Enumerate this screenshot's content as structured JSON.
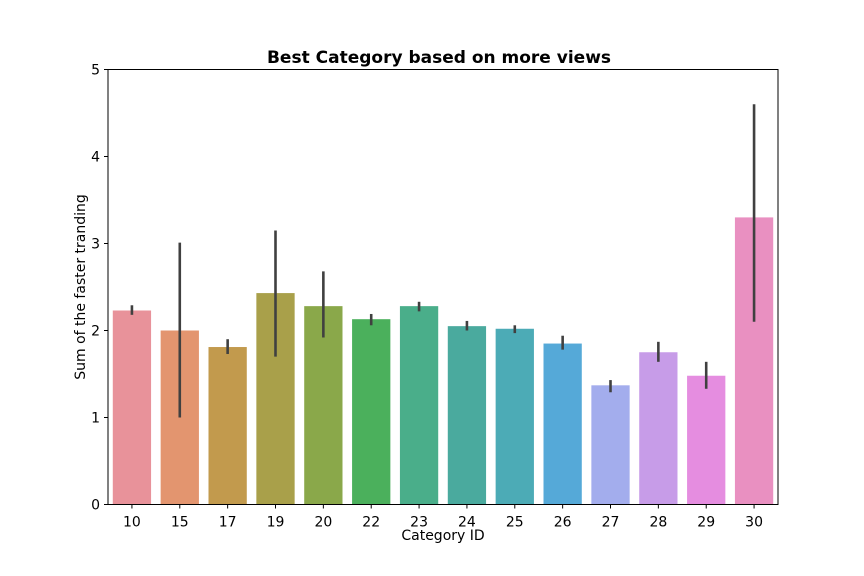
{
  "chart_data": {
    "type": "bar",
    "title": "Best Category based on more views",
    "xlabel": "Category ID",
    "ylabel": "Sum of the faster tranding",
    "ylim": [
      0,
      5
    ],
    "yticks": [
      "0",
      "1",
      "2",
      "3",
      "4",
      "5"
    ],
    "categories": [
      "10",
      "15",
      "17",
      "19",
      "20",
      "22",
      "23",
      "24",
      "25",
      "26",
      "27",
      "28",
      "29",
      "30"
    ],
    "values": [
      2.23,
      2.0,
      1.81,
      2.43,
      2.28,
      2.13,
      2.28,
      2.05,
      2.02,
      1.85,
      1.37,
      1.75,
      1.48,
      3.3
    ],
    "error_low": [
      2.18,
      1.0,
      1.73,
      1.7,
      1.92,
      2.06,
      2.22,
      2.0,
      1.97,
      1.78,
      1.29,
      1.64,
      1.33,
      2.1
    ],
    "error_high": [
      2.29,
      3.01,
      1.9,
      3.15,
      2.68,
      2.19,
      2.33,
      2.11,
      2.06,
      1.94,
      1.43,
      1.87,
      1.64,
      4.6
    ],
    "colors": [
      "#e8929a",
      "#e3956f",
      "#c29a4d",
      "#a9a04a",
      "#8aa84a",
      "#4bb05c",
      "#4aae8a",
      "#4aaa9e",
      "#4cabb6",
      "#55a9d8",
      "#a3aded",
      "#c79ce8",
      "#e58de0",
      "#e990c1"
    ],
    "error_color": "#404040",
    "grid": false,
    "legend": "none"
  }
}
